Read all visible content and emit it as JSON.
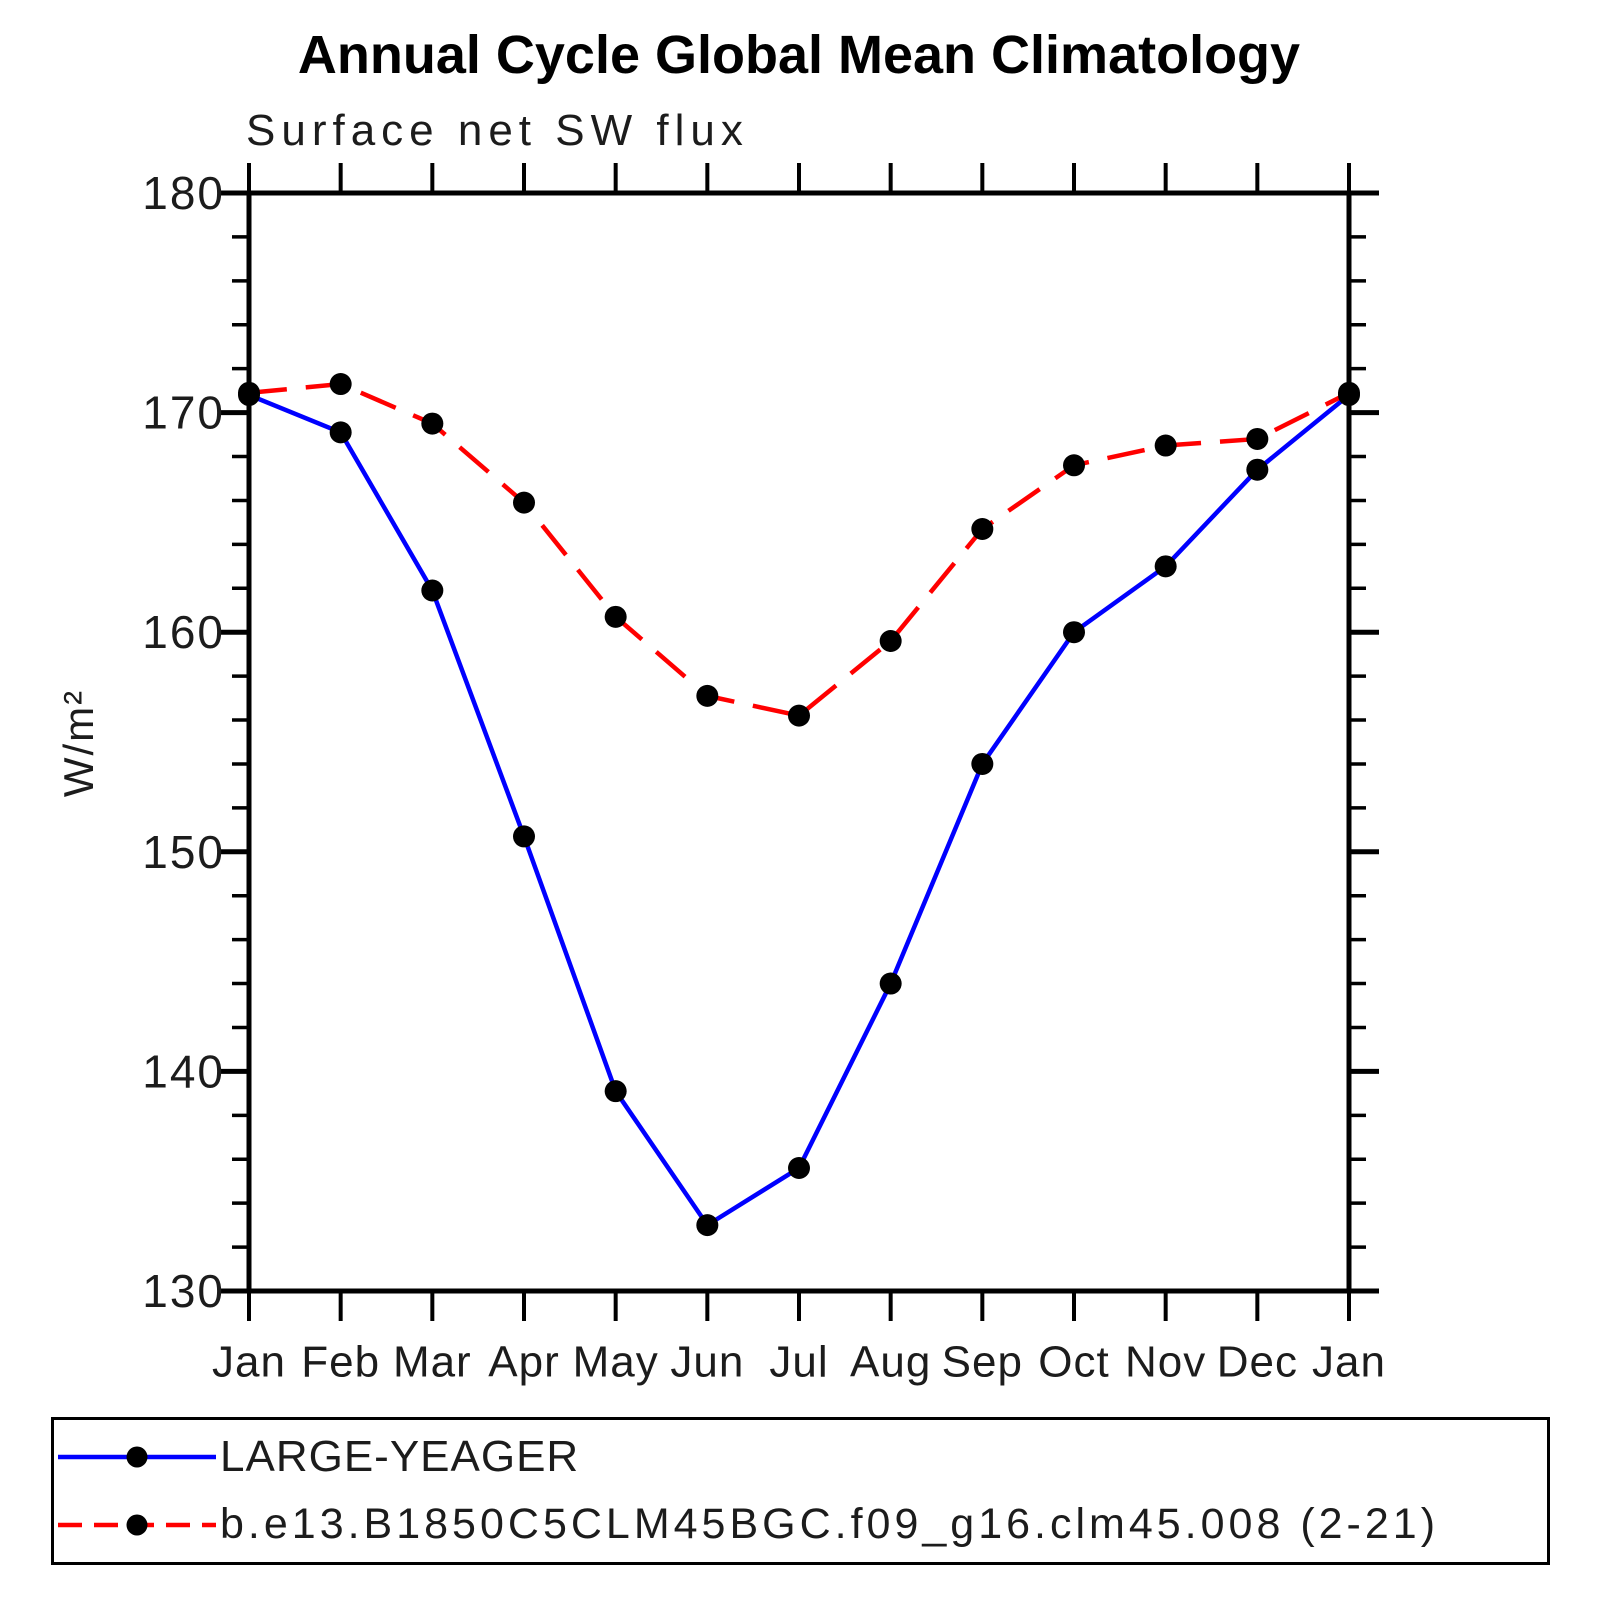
{
  "chart_data": {
    "type": "line",
    "title": "Annual Cycle Global Mean Climatology",
    "subtitle": "Surface net SW flux",
    "ylabel": "W/m²",
    "categories": [
      "Jan",
      "Feb",
      "Mar",
      "Apr",
      "May",
      "Jun",
      "Jul",
      "Aug",
      "Sep",
      "Oct",
      "Nov",
      "Dec",
      "Jan"
    ],
    "ylim": [
      130,
      180
    ],
    "y_major_ticks": [
      180,
      170,
      160,
      150,
      140,
      130
    ],
    "y_minor_step": 2,
    "grid": false,
    "legend_position": "bottom-box",
    "axis_color": "#000000",
    "marker_color": "#000000",
    "series": [
      {
        "name": "LARGE-YEAGER",
        "color": "#0000ff",
        "line_style": "solid",
        "marker": "filled-circle",
        "values": [
          170.8,
          169.1,
          161.9,
          150.7,
          139.1,
          133.0,
          135.6,
          144.0,
          154.0,
          160.0,
          163.0,
          167.4,
          170.8
        ]
      },
      {
        "name": "b.e13.B1850C5CLM45BGC.f09_g16.clm45.008 (2-21)",
        "color": "#ff0000",
        "line_style": "dashed",
        "marker": "filled-circle",
        "values": [
          170.9,
          171.3,
          169.5,
          165.9,
          160.7,
          157.1,
          156.2,
          159.6,
          164.7,
          167.6,
          168.5,
          168.8,
          170.9
        ]
      }
    ]
  }
}
